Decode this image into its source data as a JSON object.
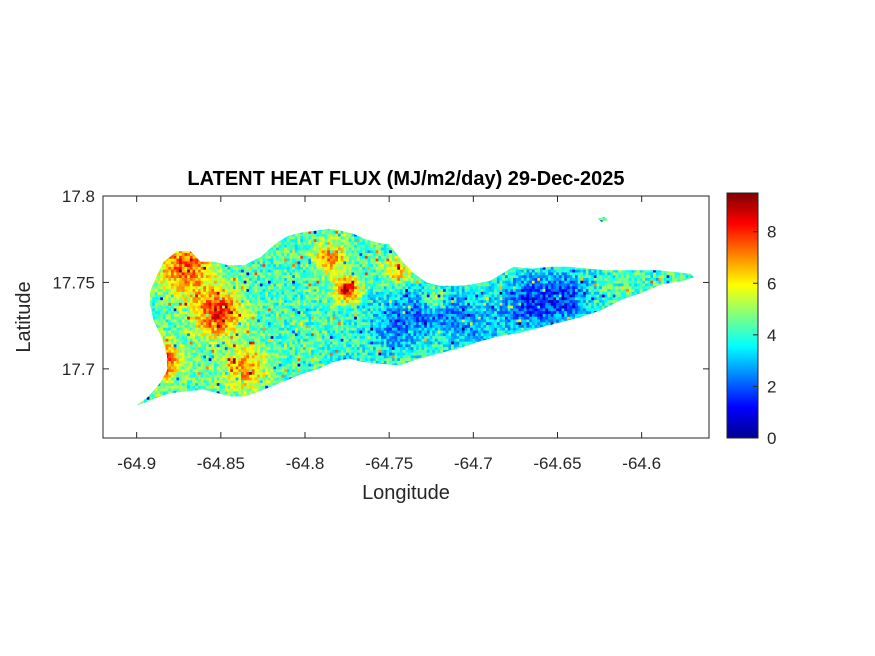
{
  "chart_data": {
    "type": "heatmap",
    "title": "LATENT HEAT FLUX (MJ/m2/day) 29-Dec-2025",
    "xlabel": "Longitude",
    "ylabel": "Latitude",
    "xlim": [
      -64.92,
      -64.56
    ],
    "ylim": [
      17.66,
      17.8
    ],
    "x_ticks": [
      -64.9,
      -64.85,
      -64.8,
      -64.75,
      -64.7,
      -64.65,
      -64.6
    ],
    "x_tick_labels": [
      "-64.9",
      "-64.85",
      "-64.8",
      "-64.75",
      "-64.7",
      "-64.65",
      "-64.6"
    ],
    "y_ticks": [
      17.7,
      17.75,
      17.8
    ],
    "y_tick_labels": [
      "17.7",
      "17.75",
      "17.8"
    ],
    "colorbar": {
      "colormap": "jet",
      "range": [
        0,
        9.5
      ],
      "ticks": [
        0,
        2,
        4,
        6,
        8
      ],
      "tick_labels": [
        "0",
        "2",
        "4",
        "6",
        "8"
      ]
    },
    "grid": false,
    "region_outline": [
      [
        -64.9,
        17.679
      ],
      [
        -64.893,
        17.684
      ],
      [
        -64.886,
        17.692
      ],
      [
        -64.882,
        17.699
      ],
      [
        -64.882,
        17.708
      ],
      [
        -64.885,
        17.718
      ],
      [
        -64.89,
        17.728
      ],
      [
        -64.892,
        17.737
      ],
      [
        -64.892,
        17.745
      ],
      [
        -64.888,
        17.754
      ],
      [
        -64.884,
        17.762
      ],
      [
        -64.876,
        17.768
      ],
      [
        -64.868,
        17.768
      ],
      [
        -64.862,
        17.762
      ],
      [
        -64.854,
        17.762
      ],
      [
        -64.846,
        17.76
      ],
      [
        -64.836,
        17.76
      ],
      [
        -64.826,
        17.765
      ],
      [
        -64.818,
        17.772
      ],
      [
        -64.81,
        17.777
      ],
      [
        -64.801,
        17.779
      ],
      [
        -64.793,
        17.78
      ],
      [
        -64.786,
        17.781
      ],
      [
        -64.779,
        17.78
      ],
      [
        -64.771,
        17.778
      ],
      [
        -64.764,
        17.775
      ],
      [
        -64.757,
        17.773
      ],
      [
        -64.75,
        17.772
      ],
      [
        -64.746,
        17.767
      ],
      [
        -64.741,
        17.761
      ],
      [
        -64.735,
        17.755
      ],
      [
        -64.728,
        17.75
      ],
      [
        -64.72,
        17.748
      ],
      [
        -64.71,
        17.748
      ],
      [
        -64.7,
        17.749
      ],
      [
        -64.69,
        17.751
      ],
      [
        -64.683,
        17.755
      ],
      [
        -64.676,
        17.759
      ],
      [
        -64.666,
        17.758
      ],
      [
        -64.654,
        17.759
      ],
      [
        -64.643,
        17.759
      ],
      [
        -64.632,
        17.758
      ],
      [
        -64.621,
        17.757
      ],
      [
        -64.61,
        17.757
      ],
      [
        -64.6,
        17.757
      ],
      [
        -64.59,
        17.757
      ],
      [
        -64.58,
        17.756
      ],
      [
        -64.571,
        17.755
      ],
      [
        -64.569,
        17.753
      ],
      [
        -64.575,
        17.751
      ],
      [
        -64.588,
        17.749
      ],
      [
        -64.6,
        17.744
      ],
      [
        -64.612,
        17.74
      ],
      [
        -64.624,
        17.734
      ],
      [
        -64.636,
        17.73
      ],
      [
        -64.648,
        17.727
      ],
      [
        -64.66,
        17.724
      ],
      [
        -64.672,
        17.721
      ],
      [
        -64.684,
        17.719
      ],
      [
        -64.696,
        17.716
      ],
      [
        -64.708,
        17.712
      ],
      [
        -64.72,
        17.709
      ],
      [
        -64.732,
        17.706
      ],
      [
        -64.744,
        17.702
      ],
      [
        -64.756,
        17.703
      ],
      [
        -64.766,
        17.704
      ],
      [
        -64.774,
        17.706
      ],
      [
        -64.783,
        17.704
      ],
      [
        -64.792,
        17.7
      ],
      [
        -64.802,
        17.697
      ],
      [
        -64.812,
        17.693
      ],
      [
        -64.822,
        17.689
      ],
      [
        -64.83,
        17.686
      ],
      [
        -64.836,
        17.684
      ],
      [
        -64.844,
        17.684
      ],
      [
        -64.852,
        17.686
      ],
      [
        -64.86,
        17.688
      ],
      [
        -64.87,
        17.687
      ],
      [
        -64.88,
        17.686
      ],
      [
        -64.889,
        17.683
      ],
      [
        -64.896,
        17.68
      ]
    ],
    "islet_outline": [
      [
        -64.626,
        17.787
      ],
      [
        -64.622,
        17.788
      ],
      [
        -64.62,
        17.786
      ],
      [
        -64.624,
        17.785
      ]
    ],
    "hot_spots": [
      {
        "lon": -64.872,
        "lat": 17.76,
        "value": 7.5,
        "radius": 0.012
      },
      {
        "lon": -64.852,
        "lat": 17.733,
        "value": 8.2,
        "radius": 0.01
      },
      {
        "lon": -64.885,
        "lat": 17.705,
        "value": 8.0,
        "radius": 0.008
      },
      {
        "lon": -64.835,
        "lat": 17.7,
        "value": 7.0,
        "radius": 0.009
      },
      {
        "lon": -64.785,
        "lat": 17.765,
        "value": 7.0,
        "radius": 0.007
      },
      {
        "lon": -64.775,
        "lat": 17.746,
        "value": 8.6,
        "radius": 0.005
      },
      {
        "lon": -64.745,
        "lat": 17.757,
        "value": 6.5,
        "radius": 0.006
      },
      {
        "lon": -64.722,
        "lat": 17.74,
        "value": 6.8,
        "radius": 0.005
      }
    ],
    "cool_spots": [
      {
        "lon": -64.745,
        "lat": 17.728,
        "value": 2.2,
        "radius": 0.012
      },
      {
        "lon": -64.72,
        "lat": 17.735,
        "value": 2.3,
        "radius": 0.01
      },
      {
        "lon": -64.668,
        "lat": 17.738,
        "value": 1.8,
        "radius": 0.012
      },
      {
        "lon": -64.645,
        "lat": 17.742,
        "value": 2.0,
        "radius": 0.01
      },
      {
        "lon": -64.775,
        "lat": 17.701,
        "value": 1.2,
        "radius": 0.004
      },
      {
        "lon": -64.7,
        "lat": 17.725,
        "value": 2.8,
        "radius": 0.01
      }
    ],
    "base_value": 4.2
  }
}
